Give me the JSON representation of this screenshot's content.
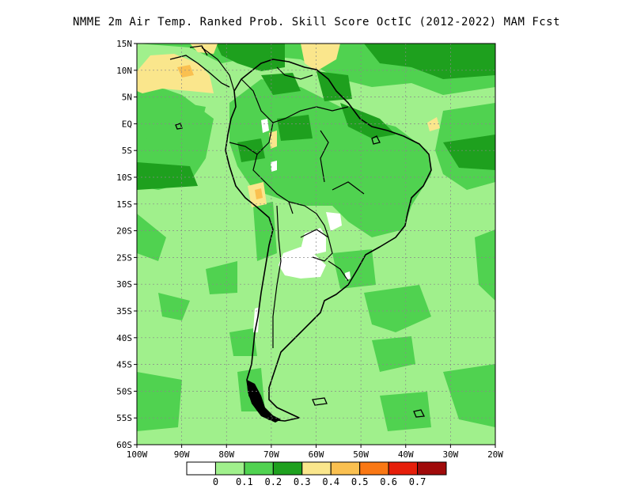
{
  "title": "NMME  2m Air Temp. Ranked Prob. Skill Score OctIC (2012-2022) MAM Fcst",
  "map": {
    "lat_labels": [
      "15N",
      "10N",
      "5N",
      "EQ",
      "5S",
      "10S",
      "15S",
      "20S",
      "25S",
      "30S",
      "35S",
      "40S",
      "45S",
      "50S",
      "55S",
      "60S"
    ],
    "lon_labels": [
      "100W",
      "90W",
      "80W",
      "70W",
      "60W",
      "50W",
      "40W",
      "30W",
      "20W"
    ],
    "grid": "dotted",
    "domain": {
      "lon_min": -100,
      "lon_max": -20,
      "lat_min": -60,
      "lat_max": 15
    }
  },
  "colorbar": {
    "levels": [
      "0",
      "0.1",
      "0.2",
      "0.3",
      "0.4",
      "0.5",
      "0.6",
      "0.7"
    ],
    "colors": [
      "#ffffff",
      "#a0f08c",
      "#50d250",
      "#1ea01e",
      "#fae68c",
      "#fac050",
      "#fa7814",
      "#e61e0a",
      "#a00a0a"
    ]
  },
  "colors": {
    "background_skill": "#a0f08c",
    "moderate_skill": "#50d250",
    "high_skill": "#1ea01e",
    "low_skill_yellow": "#fae68c",
    "low_skill_orange": "#fac050",
    "no_skill": "#ffffff",
    "coastline": "#000000"
  }
}
